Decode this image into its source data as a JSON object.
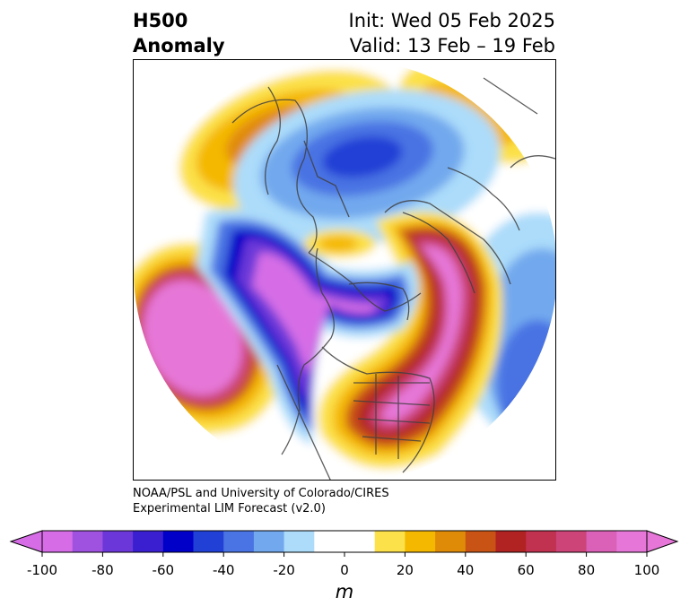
{
  "title": {
    "left_line1": "H500",
    "left_line2": "Anomaly",
    "right_line1": "Init: Wed 05 Feb 2025",
    "right_line2": "Valid: 13 Feb – 19 Feb"
  },
  "credit": {
    "line1": "NOAA/PSL and University of Colorado/CIRES",
    "line2": "Experimental LIM Forecast (v2.0)"
  },
  "colorbar": {
    "units": "m",
    "ticks": [
      "-100",
      "-80",
      "-60",
      "-40",
      "-20",
      "0",
      "20",
      "40",
      "60",
      "80",
      "100"
    ],
    "levels": [
      -100,
      -90,
      -80,
      -70,
      -60,
      -50,
      -40,
      -30,
      -20,
      -10,
      10,
      20,
      30,
      40,
      50,
      60,
      70,
      80,
      90,
      100
    ],
    "colors": [
      "#d66de6",
      "#9f52e0",
      "#6b37d8",
      "#3a1fd1",
      "#0000c8",
      "#2140d6",
      "#4a73e3",
      "#72a9ee",
      "#acdcfa",
      "#ffffff",
      "#fce14a",
      "#f4b800",
      "#e08b08",
      "#c95314",
      "#b12222",
      "#c13250",
      "#cc4478",
      "#db61b8",
      "#e677d8"
    ],
    "under_color": "#d66de6",
    "over_color": "#e677d8"
  },
  "map": {
    "projection": "north-polar-stereographic",
    "field": "500 hPa geopotential height anomaly"
  }
}
